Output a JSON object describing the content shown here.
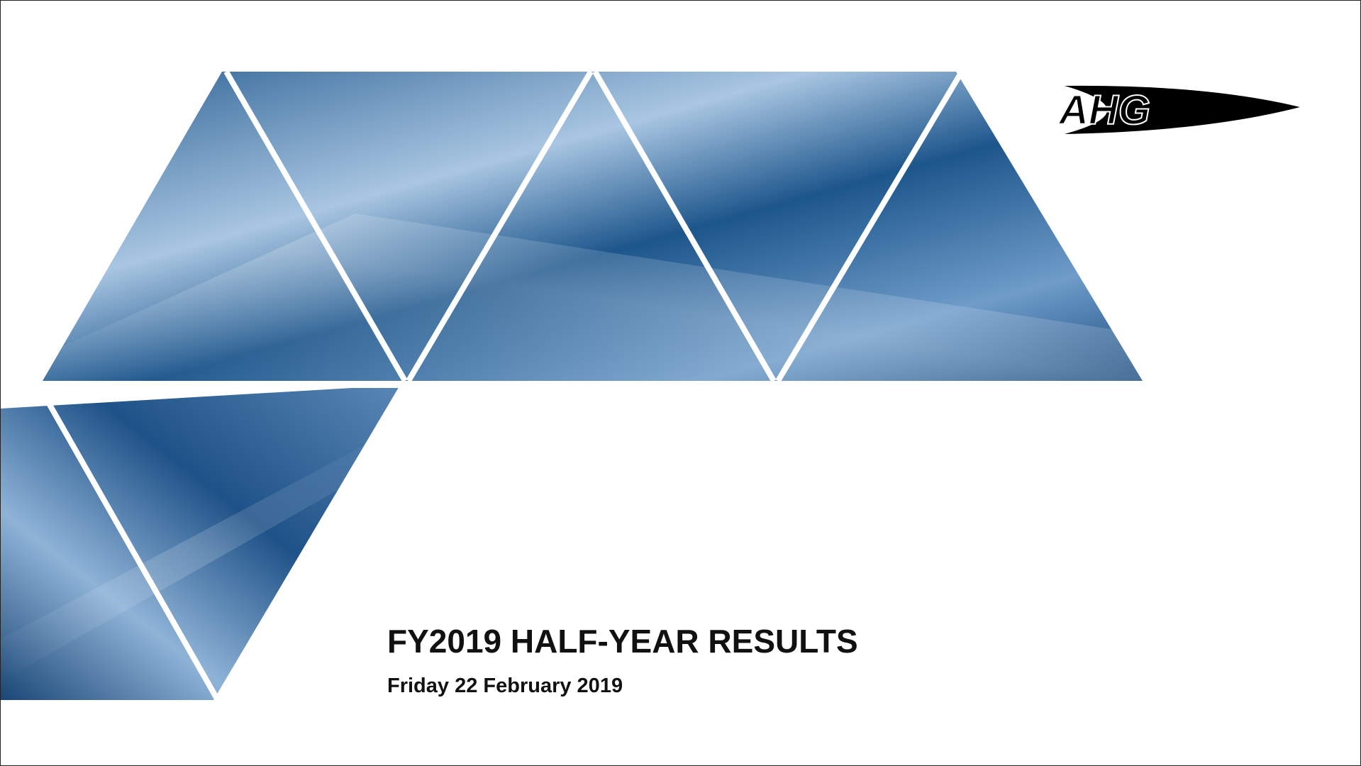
{
  "logo": {
    "text": "AHG"
  },
  "title": "FY2019 HALF-YEAR RESULTS",
  "subtitle": "Friday 22 February 2019"
}
